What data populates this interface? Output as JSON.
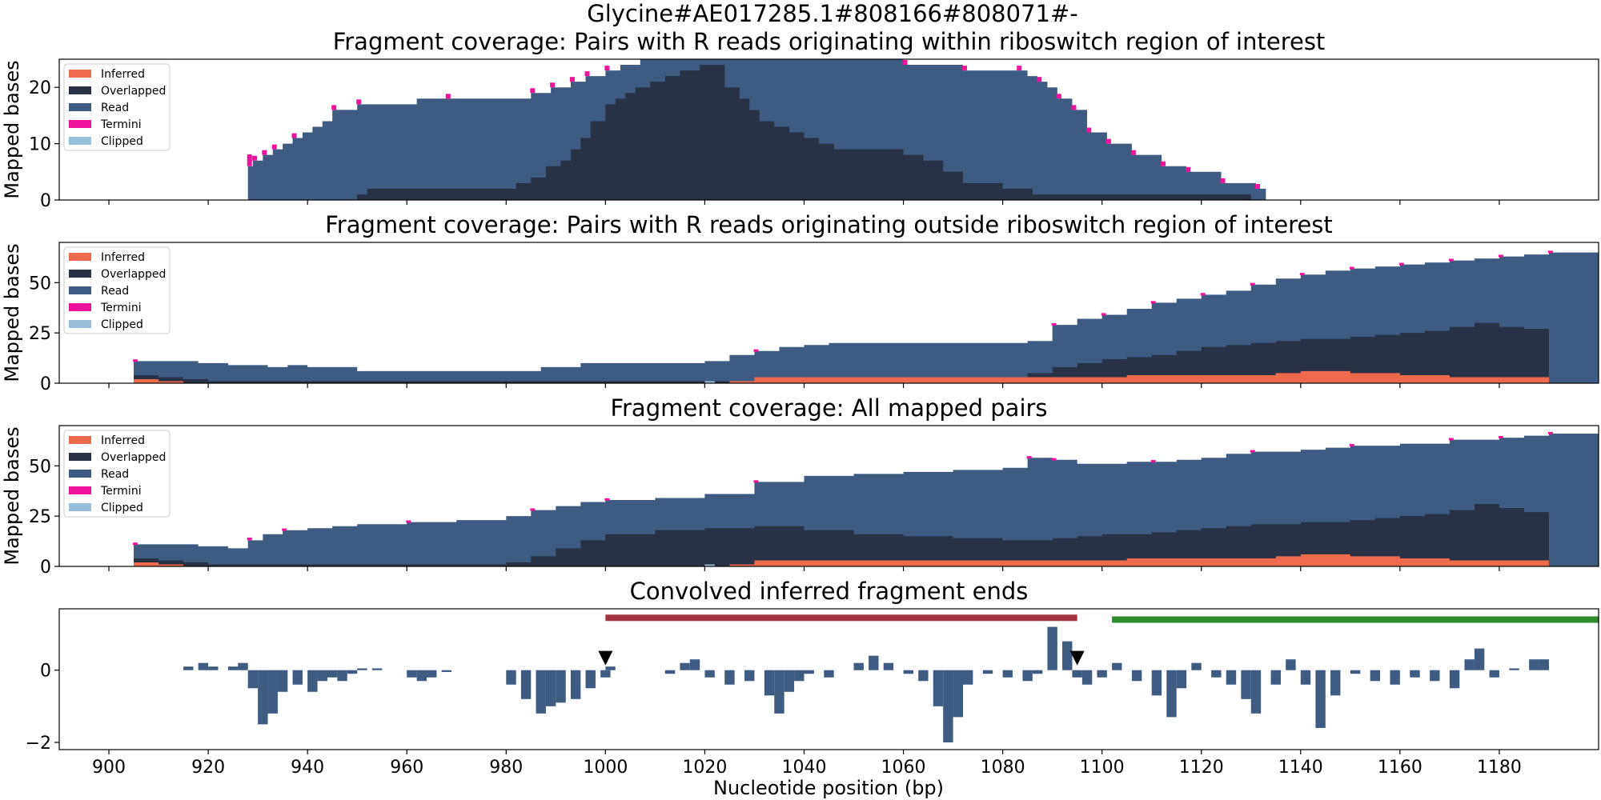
{
  "figure": {
    "suptitle": "Glycine#AE017285.1#808166#808071#-",
    "xlabel": "Nucleotide position (bp)",
    "xticks": [
      900,
      920,
      940,
      960,
      980,
      1000,
      1020,
      1040,
      1060,
      1080,
      1100,
      1120,
      1140,
      1160,
      1180
    ],
    "xlim": [
      890,
      1200
    ]
  },
  "colors": {
    "inferred": "#ee6a4f",
    "overlapped": "#283244",
    "read": "#3f5b82",
    "termini": "#ee139b",
    "clipped": "#97bfd9",
    "region_red": "#a1343f",
    "region_green": "#2e8b2e"
  },
  "legend": [
    "Inferred",
    "Overlapped",
    "Read",
    "Termini",
    "Clipped"
  ],
  "chart_data": [
    {
      "type": "area",
      "title": "Fragment coverage: Pairs with R reads originating within riboswitch region of interest",
      "ylabel": "Mapped bases",
      "ylim": [
        0,
        25
      ],
      "yticks": [
        0,
        10,
        20
      ],
      "legend_position": "top-left",
      "series": [
        {
          "name": "Read",
          "x": [
            900,
            928,
            929,
            931,
            933,
            935,
            937,
            939,
            941,
            943,
            945,
            950,
            962,
            968,
            980,
            985,
            989,
            993,
            996,
            1000,
            1003,
            1007,
            1012,
            1017,
            1022,
            1025,
            1030,
            1038,
            1053,
            1056,
            1060,
            1072,
            1083,
            1085,
            1087,
            1089,
            1091,
            1094,
            1097,
            1101,
            1106,
            1112,
            1117,
            1124,
            1131,
            1133,
            1200
          ],
          "values": [
            0,
            6,
            7,
            8,
            9,
            10,
            11,
            12,
            13,
            14,
            16,
            17,
            18,
            18,
            18,
            19,
            20,
            21,
            22,
            23,
            24,
            25,
            25,
            25,
            25,
            25,
            25,
            25,
            25,
            25,
            24,
            23,
            23,
            22,
            21,
            20,
            18,
            16,
            12,
            10,
            8,
            6,
            5,
            3,
            2,
            0,
            0
          ]
        },
        {
          "name": "Overlapped",
          "x": [
            900,
            950,
            952,
            965,
            982,
            985,
            988,
            991,
            993,
            995,
            997,
            1000,
            1002,
            1004,
            1006,
            1009,
            1012,
            1015,
            1019,
            1022,
            1024,
            1027,
            1029,
            1031,
            1034,
            1037,
            1040,
            1043,
            1046,
            1050,
            1053,
            1056,
            1060,
            1064,
            1068,
            1072,
            1080,
            1086,
            1090,
            1094,
            1100,
            1106,
            1116,
            1130,
            1200
          ],
          "values": [
            0,
            1,
            2,
            2,
            3,
            4,
            6,
            7,
            9,
            11,
            14,
            17,
            18,
            19,
            20,
            21,
            22,
            23,
            24,
            24,
            20,
            18,
            16,
            14,
            13,
            12,
            11,
            10,
            9,
            9,
            9,
            9,
            8,
            7,
            5,
            3,
            2,
            1,
            1,
            1,
            1,
            1,
            1,
            0,
            0
          ]
        },
        {
          "name": "Termini",
          "x": [
            928,
            929,
            931,
            933,
            937,
            945,
            950,
            968,
            985,
            989,
            993,
            996,
            1000,
            1007,
            1025,
            1053,
            1060,
            1072,
            1083,
            1087,
            1091,
            1094,
            1097,
            1101,
            1106,
            1112,
            1117,
            1124,
            1131
          ],
          "values": [
            6,
            1,
            1,
            1,
            1,
            1,
            1,
            1,
            1,
            1,
            1,
            1,
            1,
            1,
            1,
            1,
            1,
            1,
            1,
            1,
            1,
            1,
            1,
            1,
            1,
            1,
            1,
            1,
            1
          ]
        }
      ]
    },
    {
      "type": "area",
      "title": "Fragment coverage: Pairs with R reads originating outside riboswitch region of interest",
      "ylabel": "Mapped bases",
      "ylim": [
        0,
        70
      ],
      "yticks": [
        0,
        25,
        50
      ],
      "legend_position": "top-left",
      "series": [
        {
          "name": "Read",
          "x": [
            905,
            918,
            924,
            932,
            936,
            940,
            950,
            960,
            970,
            980,
            987,
            995,
            1000,
            1010,
            1020,
            1025,
            1030,
            1035,
            1040,
            1045,
            1055,
            1065,
            1075,
            1085,
            1090,
            1095,
            1100,
            1105,
            1110,
            1115,
            1120,
            1125,
            1130,
            1135,
            1140,
            1145,
            1150,
            1155,
            1160,
            1165,
            1170,
            1175,
            1180,
            1185,
            1190,
            1200
          ],
          "values": [
            11,
            10,
            9,
            8,
            9,
            8,
            6,
            6,
            6,
            6,
            8,
            10,
            10,
            10,
            11,
            14,
            16,
            18,
            19,
            20,
            20,
            20,
            20,
            21,
            29,
            32,
            34,
            37,
            40,
            42,
            44,
            46,
            49,
            52,
            54,
            56,
            57,
            58,
            59,
            60,
            61,
            62,
            63,
            64,
            65,
            66
          ]
        },
        {
          "name": "Overlapped",
          "x": [
            905,
            910,
            915,
            920,
            930,
            940,
            960,
            980,
            1000,
            1020,
            1030,
            1040,
            1050,
            1060,
            1070,
            1080,
            1085,
            1090,
            1095,
            1100,
            1105,
            1110,
            1115,
            1120,
            1125,
            1130,
            1135,
            1140,
            1145,
            1150,
            1155,
            1160,
            1165,
            1170,
            1175,
            1180,
            1185,
            1190
          ],
          "values": [
            4,
            3,
            2,
            1,
            1,
            1,
            1,
            1,
            1,
            1,
            2,
            3,
            3,
            3,
            3,
            3,
            5,
            8,
            10,
            12,
            13,
            14,
            16,
            18,
            19,
            20,
            21,
            22,
            22,
            23,
            24,
            25,
            26,
            28,
            30,
            28,
            27,
            25
          ]
        },
        {
          "name": "Inferred",
          "x": [
            905,
            910,
            915,
            1020,
            1025,
            1030,
            1100,
            1105,
            1115,
            1130,
            1135,
            1140,
            1150,
            1160,
            1170,
            1180,
            1190
          ],
          "values": [
            2,
            1,
            0,
            0,
            1,
            3,
            3,
            4,
            4,
            4,
            5,
            6,
            5,
            4,
            3,
            3,
            3
          ]
        },
        {
          "name": "Clipped",
          "x": [
            1000,
            1019,
            1020,
            1022,
            1200
          ],
          "values": [
            0,
            0,
            1,
            0,
            0
          ]
        },
        {
          "name": "Termini",
          "x": [
            905,
            1030,
            1090,
            1100,
            1110,
            1120,
            1130,
            1140,
            1150,
            1160,
            1170,
            1180,
            1190
          ],
          "values": [
            1,
            1,
            1,
            1,
            1,
            1,
            1,
            1,
            1,
            1,
            1,
            1,
            1
          ]
        }
      ]
    },
    {
      "type": "area",
      "title": "Fragment coverage: All mapped pairs",
      "ylabel": "Mapped bases",
      "ylim": [
        0,
        70
      ],
      "yticks": [
        0,
        25,
        50
      ],
      "legend_position": "top-left",
      "series": [
        {
          "name": "Read",
          "x": [
            905,
            918,
            924,
            928,
            931,
            935,
            940,
            945,
            950,
            960,
            970,
            980,
            985,
            990,
            995,
            1000,
            1010,
            1020,
            1030,
            1040,
            1050,
            1060,
            1070,
            1080,
            1085,
            1090,
            1095,
            1100,
            1105,
            1110,
            1115,
            1120,
            1125,
            1130,
            1135,
            1140,
            1145,
            1150,
            1160,
            1170,
            1180,
            1185,
            1190,
            1200
          ],
          "values": [
            11,
            10,
            9,
            13,
            16,
            18,
            19,
            20,
            21,
            22,
            23,
            25,
            28,
            30,
            32,
            33,
            34,
            36,
            42,
            45,
            46,
            47,
            48,
            49,
            54,
            53,
            51,
            51,
            52,
            52,
            53,
            54,
            56,
            57,
            57,
            58,
            59,
            60,
            61,
            63,
            64,
            65,
            66,
            66
          ]
        },
        {
          "name": "Overlapped",
          "x": [
            905,
            910,
            915,
            920,
            930,
            940,
            960,
            980,
            985,
            990,
            995,
            1000,
            1010,
            1020,
            1030,
            1040,
            1050,
            1060,
            1070,
            1080,
            1085,
            1090,
            1095,
            1100,
            1105,
            1110,
            1115,
            1120,
            1125,
            1130,
            1135,
            1140,
            1145,
            1150,
            1155,
            1160,
            1165,
            1170,
            1175,
            1180,
            1185,
            1190
          ],
          "values": [
            4,
            3,
            2,
            1,
            1,
            1,
            1,
            2,
            5,
            9,
            13,
            16,
            18,
            19,
            20,
            18,
            16,
            15,
            14,
            13,
            13,
            14,
            15,
            16,
            16,
            17,
            18,
            19,
            20,
            21,
            21,
            22,
            22,
            23,
            24,
            25,
            26,
            28,
            31,
            29,
            27,
            25
          ]
        },
        {
          "name": "Inferred",
          "x": [
            905,
            910,
            915,
            1020,
            1025,
            1030,
            1100,
            1105,
            1115,
            1130,
            1135,
            1140,
            1150,
            1160,
            1170,
            1180,
            1190
          ],
          "values": [
            2,
            1,
            0,
            0,
            1,
            3,
            3,
            4,
            4,
            4,
            5,
            6,
            5,
            4,
            3,
            3,
            3
          ]
        },
        {
          "name": "Clipped",
          "x": [
            1000,
            1019,
            1020,
            1022,
            1200
          ],
          "values": [
            0,
            0,
            1,
            0,
            0
          ]
        },
        {
          "name": "Termini",
          "x": [
            905,
            928,
            935,
            960,
            985,
            1000,
            1030,
            1085,
            1090,
            1110,
            1130,
            1150,
            1170,
            1180,
            1190
          ],
          "values": [
            1,
            3,
            1,
            1,
            1,
            1,
            1,
            1,
            1,
            1,
            1,
            1,
            1,
            1,
            1
          ]
        }
      ]
    },
    {
      "type": "bar",
      "title": "Convolved inferred fragment ends",
      "ylabel": "",
      "ylim": [
        -2.2,
        1.7
      ],
      "yticks": [
        -2,
        0
      ],
      "bars": {
        "x": [
          915,
          918,
          920,
          924,
          926,
          928,
          930,
          932,
          934,
          937,
          940,
          942,
          944,
          946,
          948,
          950,
          953,
          960,
          962,
          964,
          967,
          980,
          983,
          986,
          988,
          990,
          993,
          996,
          999,
          1000,
          1012,
          1015,
          1017,
          1020,
          1024,
          1028,
          1032,
          1034,
          1036,
          1038,
          1040,
          1044,
          1050,
          1053,
          1056,
          1060,
          1063,
          1066,
          1068,
          1070,
          1072,
          1076,
          1080,
          1084,
          1086,
          1089,
          1092,
          1094,
          1096,
          1099,
          1102,
          1106,
          1110,
          1113,
          1115,
          1118,
          1122,
          1125,
          1128,
          1130,
          1134,
          1137,
          1140,
          1143,
          1146,
          1150,
          1154,
          1158,
          1162,
          1166,
          1170,
          1173,
          1175,
          1178,
          1182,
          1186,
          1188
        ],
        "values": [
          0.1,
          0.2,
          0.1,
          0.1,
          0.2,
          -0.5,
          -1.5,
          -1.2,
          -0.6,
          -0.4,
          -0.6,
          -0.3,
          -0.2,
          -0.3,
          -0.1,
          0.05,
          0.05,
          -0.2,
          -0.3,
          -0.2,
          -0.05,
          -0.4,
          -0.8,
          -1.2,
          -1.0,
          -0.9,
          -0.8,
          -0.5,
          -0.2,
          0.1,
          -0.1,
          0.2,
          0.3,
          -0.2,
          -0.4,
          -0.3,
          -0.7,
          -1.2,
          -0.6,
          -0.3,
          -0.1,
          -0.2,
          0.2,
          0.4,
          0.2,
          -0.1,
          -0.3,
          -1.0,
          -2.0,
          -1.3,
          -0.4,
          -0.1,
          -0.2,
          -0.3,
          -0.1,
          1.2,
          0.8,
          -0.2,
          -0.4,
          -0.2,
          0.2,
          -0.3,
          -0.7,
          -1.3,
          -0.5,
          0.2,
          -0.2,
          -0.4,
          -0.8,
          -1.2,
          -0.4,
          0.3,
          -0.4,
          -1.6,
          -0.7,
          -0.1,
          -0.3,
          -0.4,
          -0.2,
          -0.3,
          -0.5,
          0.3,
          0.6,
          -0.2,
          0.05,
          0.3,
          0.3
        ]
      },
      "markers": [
        {
          "x": 1000,
          "y": 0.18
        },
        {
          "x": 1095,
          "y": 0.18
        }
      ],
      "regions": [
        {
          "x0": 1000,
          "x1": 1095,
          "y": 1.45,
          "color": "region_red"
        },
        {
          "x0": 1102,
          "x1": 1200,
          "y": 1.4,
          "color": "region_green"
        }
      ]
    }
  ]
}
